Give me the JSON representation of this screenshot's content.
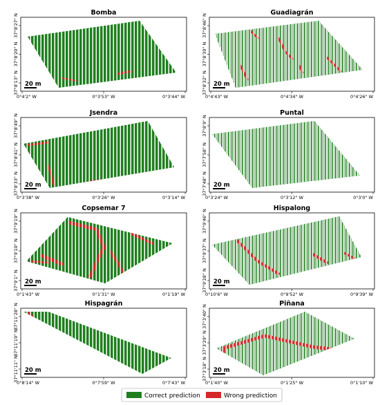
{
  "figure": {
    "panels": [
      {
        "title": "Bomba",
        "lat_ticks": [
          "37°8'27\" N",
          "37°8'20\" N",
          "37°8'13\" N"
        ],
        "lon_ticks": [
          "0°4'2\" W",
          "0°3'53\" W",
          "0°3'44\" W"
        ],
        "scale_label": "20 m"
      },
      {
        "title": "Guadiagrán",
        "lat_ticks": [
          "37°8'46\" N",
          "37°8'39\" N",
          "37°8'32\" N"
        ],
        "lon_ticks": [
          "0°4'43\" W",
          "0°4'34\" W",
          "0°4'26\" W"
        ],
        "scale_label": "20 m"
      },
      {
        "title": "Jsendra",
        "lat_ticks": [
          "37°8'49\" N",
          "37°8'41\" N",
          "37°8'33\" N"
        ],
        "lon_ticks": [
          "0°3'38\" W",
          "0°3'26\" W",
          "0°3'14\" W"
        ],
        "scale_label": "20 m"
      },
      {
        "title": "Puntal",
        "lat_ticks": [
          "37°8'9\" N",
          "37°7'58\" N",
          "37°7'48\" N"
        ],
        "lon_ticks": [
          "0°3'24\" W",
          "0°3'12\" W",
          "0°3'0\" W"
        ],
        "scale_label": "20 m"
      },
      {
        "title": "Copsemar 7",
        "lat_ticks": [
          "37°9'19\" N",
          "37°9'10\" N",
          "37°9'1\" N"
        ],
        "lon_ticks": [
          "0°1'43\" W",
          "0°1'31\" W",
          "0°1'19\" W"
        ],
        "scale_label": "20 m"
      },
      {
        "title": "Hispalong",
        "lat_ticks": [
          "37°9'46\" N",
          "37°9'37\" N",
          "37°9'28\" N"
        ],
        "lon_ticks": [
          "0°10'6\" W",
          "0°9'52\" W",
          "0°9'39\" W"
        ],
        "scale_label": "20 m"
      },
      {
        "title": "Hispagrán",
        "lat_ticks": [
          "37°11'28\" N",
          "37°11'19\" N",
          "37°11'11\" N"
        ],
        "lon_ticks": [
          "0°8'14\" W",
          "0°7'59\" W",
          "0°7'43\" W"
        ],
        "scale_label": "20 m"
      },
      {
        "title": "Piñana",
        "lat_ticks": [
          "37°3'40\" N",
          "37°3'29\" N",
          "37°3'18\" N"
        ],
        "lon_ticks": [
          "0°1'40\" W",
          "0°1'25\" W",
          "0°1'10\" W"
        ],
        "scale_label": "20 m"
      }
    ],
    "legend": [
      {
        "label": "Correct prediction",
        "color": "#1f7f1f"
      },
      {
        "label": "Wrong prediction",
        "color": "#d62728"
      }
    ],
    "colors": {
      "correct": "#1f7f1f",
      "wrong": "#d62728",
      "row_gap": "#ffffff"
    }
  }
}
